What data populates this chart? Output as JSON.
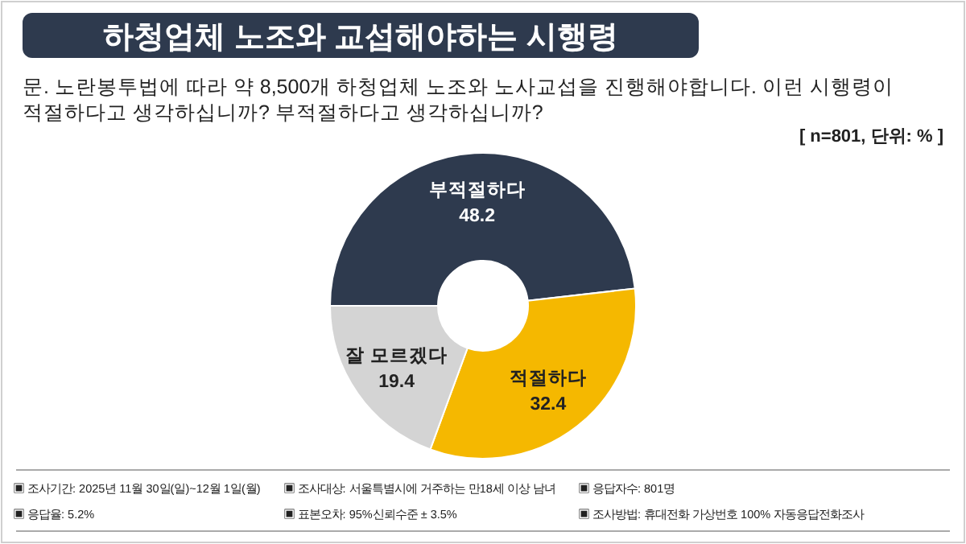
{
  "chart_data": {
    "type": "donut",
    "title": "하청업체 노조와 교섭해야하는 시행령",
    "subtitle": "문. 노란봉투법에 따라 약 8,500개 하청업체 노조와 노사교섭을 진행해야합니다. 이런 시행령이 적절하다고 생각하십니까? 부적절하다고 생각하십니까?",
    "categories": [
      "부적절하다",
      "적절하다",
      "잘 모르겠다"
    ],
    "values": [
      48.2,
      32.4,
      19.4
    ],
    "colors": [
      "#2e3a4e",
      "#f5b800",
      "#d4d4d4"
    ],
    "data_labels": true,
    "annotations": [
      "[ n=801, 단위: % ]",
      "▣ 조사기간: 2025년 11월 30일(일)~12월 1일(월)",
      "▣ 조사대상: 서울특별시에 거주하는 만18세 이상 남녀",
      "▣ 응답자수: 801명",
      "▣ 응답율: 5.2%",
      "▣ 표본오차: 95%신뢰수준 ± 3.5%",
      "▣ 조사방법: 휴대전화 가상번호 100% 자동응답전화조사"
    ]
  }
}
